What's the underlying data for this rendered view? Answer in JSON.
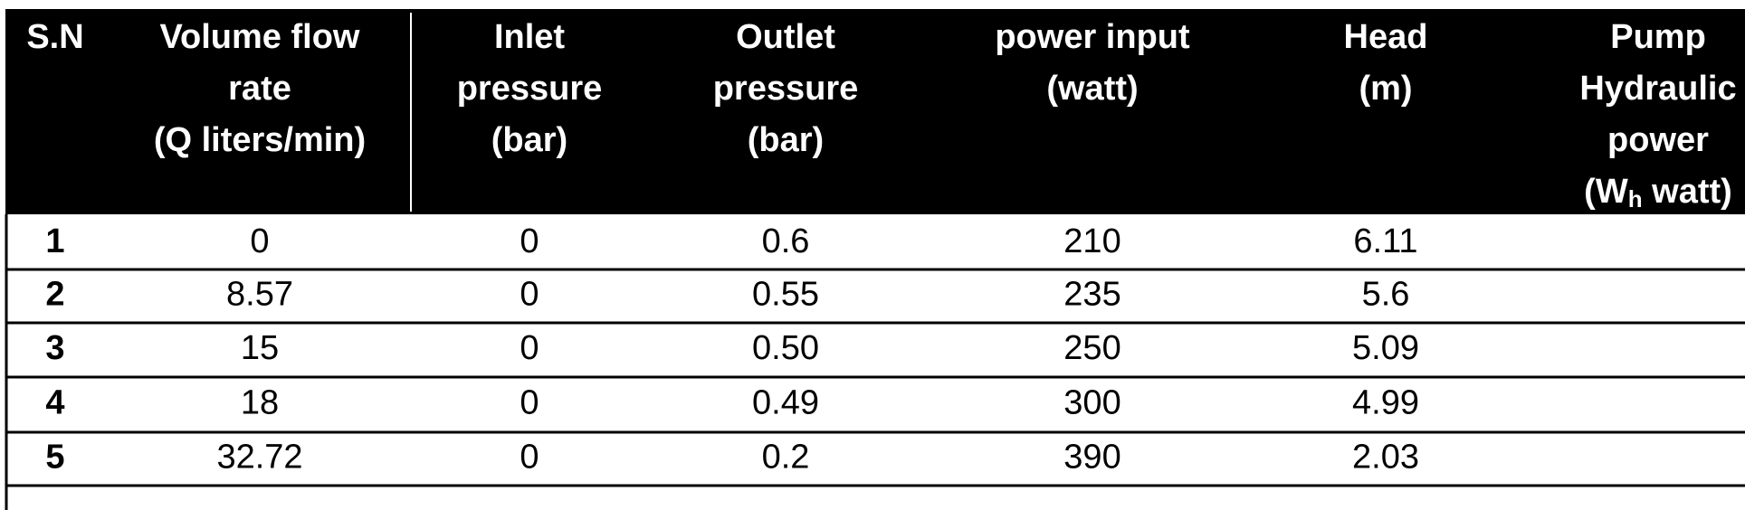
{
  "table": {
    "header": [
      [
        "S.N"
      ],
      [
        "Volume flow",
        "rate",
        "(Q liters/min)"
      ],
      [
        "Inlet",
        "pressure",
        "(bar)"
      ],
      [
        "Outlet",
        "pressure",
        "(bar)"
      ],
      [
        "power input",
        "(watt)"
      ],
      [
        "Head",
        "(m)"
      ],
      [
        "Pump",
        "Hydraulic",
        "power",
        {
          "text": "(W",
          "sub": "h",
          "tail": " watt)"
        }
      ]
    ],
    "rows": [
      [
        "1",
        "0",
        "0",
        "0.6",
        "210",
        "6.11"
      ],
      [
        "2",
        "8.57",
        "0",
        "0.55",
        "235",
        "5.6"
      ],
      [
        "3",
        "15",
        "0",
        "0.50",
        "250",
        "5.09"
      ],
      [
        "4",
        "18",
        "0",
        "0.49",
        "300",
        "4.99"
      ],
      [
        "5",
        "32.72",
        "0",
        "0.2",
        "390",
        "2.03"
      ]
    ]
  }
}
